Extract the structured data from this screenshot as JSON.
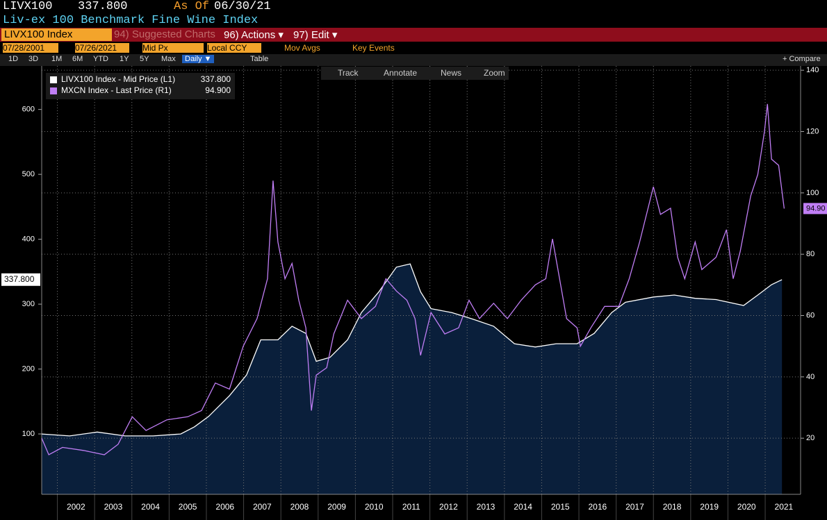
{
  "header": {
    "ticker": "LIVX100",
    "price": "337.800",
    "as_of_label": "As Of",
    "as_of_date": "06/30/21",
    "subtitle": "Liv-ex 100 Benchmark Fine Wine Index"
  },
  "toolbar": {
    "security": "LIVX100 Index",
    "suggested": "94) Suggested Charts",
    "actions": "96) Actions ▾",
    "edit": "97) Edit ▾"
  },
  "settings": {
    "start": "07/28/2001",
    "end": "07/26/2021",
    "field": "Mid Px",
    "currency": "Local CCY",
    "mov_avgs": "Mov Avgs",
    "key_events": "Key Events"
  },
  "periods": [
    "1D",
    "3D",
    "1M",
    "6M",
    "YTD",
    "1Y",
    "5Y",
    "Max"
  ],
  "frequency": "Daily ▼",
  "table": "Table",
  "compare": "+ Compare",
  "tools": [
    "Track",
    "Annotate",
    "News",
    "Zoom"
  ],
  "chart_data": {
    "type": "line",
    "xlim": [
      2001.58,
      2021.95
    ],
    "xticks": [
      2002,
      2003,
      2004,
      2005,
      2006,
      2007,
      2008,
      2009,
      2010,
      2011,
      2012,
      2013,
      2014,
      2015,
      2016,
      2017,
      2018,
      2019,
      2020,
      2021
    ],
    "ylim": [
      7,
      667
    ],
    "yticks": [
      100,
      200,
      300,
      400,
      500,
      600
    ],
    "y2lim": [
      1.7,
      141.4
    ],
    "y2ticks": [
      20,
      40,
      60,
      80,
      100,
      120,
      140
    ],
    "grid": true,
    "series": [
      {
        "name": "LIVX100 Index - Mid Price (L1)",
        "legend_value": "337.800",
        "axis_tag": "337.800",
        "color": "#ffffff",
        "fill": "#0a1f3b",
        "axis": "y",
        "x": [
          2001.58,
          2002.33,
          2003.07,
          2003.82,
          2004.57,
          2005.31,
          2005.68,
          2006.06,
          2006.62,
          2007.08,
          2007.46,
          2007.92,
          2008.3,
          2008.67,
          2008.95,
          2009.32,
          2009.79,
          2010.16,
          2010.63,
          2011.1,
          2011.47,
          2011.75,
          2012.03,
          2012.59,
          2013.15,
          2013.71,
          2014.27,
          2014.83,
          2015.39,
          2015.95,
          2016.41,
          2016.88,
          2017.25,
          2018.0,
          2018.56,
          2019.12,
          2019.68,
          2020.42,
          2020.8,
          2021.17,
          2021.45
        ],
        "values": [
          100,
          97,
          103,
          97,
          97,
          100,
          111,
          127,
          159,
          191,
          245,
          245,
          266,
          255,
          212,
          218,
          245,
          287,
          319,
          357,
          362,
          319,
          293,
          287,
          277,
          266,
          239,
          234,
          239,
          239,
          255,
          287,
          303,
          311,
          314,
          309,
          307,
          298,
          314,
          330,
          337.8
        ]
      },
      {
        "name": "MXCN Index - Last Price (R1)",
        "legend_value": "94.900",
        "axis_tag": "94.90",
        "color": "#c07ef5",
        "axis": "y2",
        "x": [
          2001.58,
          2001.77,
          2002.14,
          2002.7,
          2003.26,
          2003.63,
          2004.01,
          2004.38,
          2004.94,
          2005.5,
          2005.87,
          2006.24,
          2006.62,
          2006.99,
          2007.36,
          2007.64,
          2007.79,
          2007.92,
          2008.11,
          2008.3,
          2008.48,
          2008.67,
          2008.82,
          2008.95,
          2009.23,
          2009.42,
          2009.79,
          2010.16,
          2010.54,
          2010.82,
          2011.1,
          2011.38,
          2011.6,
          2011.75,
          2012.03,
          2012.4,
          2012.77,
          2013.05,
          2013.33,
          2013.71,
          2014.08,
          2014.45,
          2014.83,
          2015.11,
          2015.29,
          2015.48,
          2015.67,
          2015.95,
          2016.04,
          2016.32,
          2016.69,
          2017.07,
          2017.35,
          2017.63,
          2018.0,
          2018.19,
          2018.46,
          2018.65,
          2018.84,
          2019.12,
          2019.3,
          2019.68,
          2019.96,
          2020.14,
          2020.33,
          2020.61,
          2020.8,
          2020.98,
          2021.06,
          2021.17,
          2021.36,
          2021.51
        ],
        "values": [
          20,
          14.6,
          17,
          16,
          14.6,
          18,
          27,
          22.5,
          26,
          27,
          29,
          38,
          36,
          50,
          59,
          72,
          104,
          84,
          72,
          77,
          65,
          56,
          29,
          40.6,
          43,
          54,
          65,
          59,
          63,
          72,
          68,
          65,
          59,
          47,
          61,
          54,
          56,
          65,
          59,
          64,
          59,
          65,
          70,
          72,
          85,
          72,
          59,
          56,
          50,
          56,
          63,
          63,
          72,
          84,
          102,
          93,
          95,
          79,
          72,
          84,
          75,
          79,
          88,
          72,
          81,
          99,
          106,
          120,
          129,
          111,
          109,
          94.9
        ]
      }
    ]
  }
}
